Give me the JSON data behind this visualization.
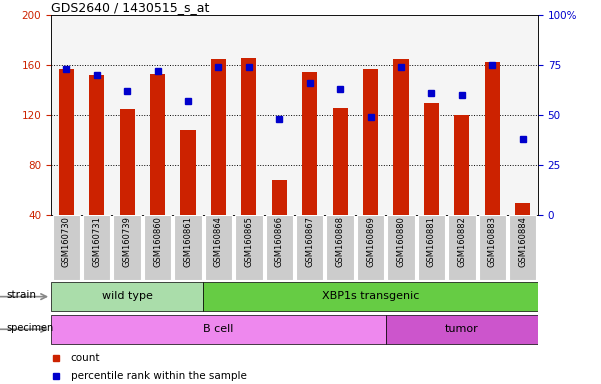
{
  "title": "GDS2640 / 1430515_s_at",
  "samples": [
    "GSM160730",
    "GSM160731",
    "GSM160739",
    "GSM160860",
    "GSM160861",
    "GSM160864",
    "GSM160865",
    "GSM160866",
    "GSM160867",
    "GSM160868",
    "GSM160869",
    "GSM160880",
    "GSM160881",
    "GSM160882",
    "GSM160883",
    "GSM160884"
  ],
  "counts": [
    157,
    152,
    125,
    153,
    108,
    165,
    166,
    68,
    155,
    126,
    157,
    165,
    130,
    120,
    163,
    50
  ],
  "percentiles": [
    73,
    70,
    62,
    72,
    57,
    74,
    74,
    48,
    66,
    63,
    49,
    74,
    61,
    60,
    75,
    38
  ],
  "ylim_left": [
    40,
    200
  ],
  "ylim_right": [
    0,
    100
  ],
  "yticks_left": [
    40,
    80,
    120,
    160,
    200
  ],
  "yticks_right": [
    0,
    25,
    50,
    75,
    100
  ],
  "bar_color": "#cc2200",
  "dot_color": "#0000cc",
  "axis_bg_color": "#f5f5f5",
  "xtick_bg_color": "#cccccc",
  "strain_colors": [
    "#aaddaa",
    "#66cc44"
  ],
  "specimen_colors": [
    "#ee88ee",
    "#cc55cc"
  ],
  "ylabel_left_color": "#cc2200",
  "ylabel_right_color": "#0000cc",
  "strain_groups": [
    {
      "label": "wild type",
      "start": 0,
      "end": 5
    },
    {
      "label": "XBP1s transgenic",
      "start": 5,
      "end": 16
    }
  ],
  "specimen_groups": [
    {
      "label": "B cell",
      "start": 0,
      "end": 11
    },
    {
      "label": "tumor",
      "start": 11,
      "end": 16
    }
  ]
}
